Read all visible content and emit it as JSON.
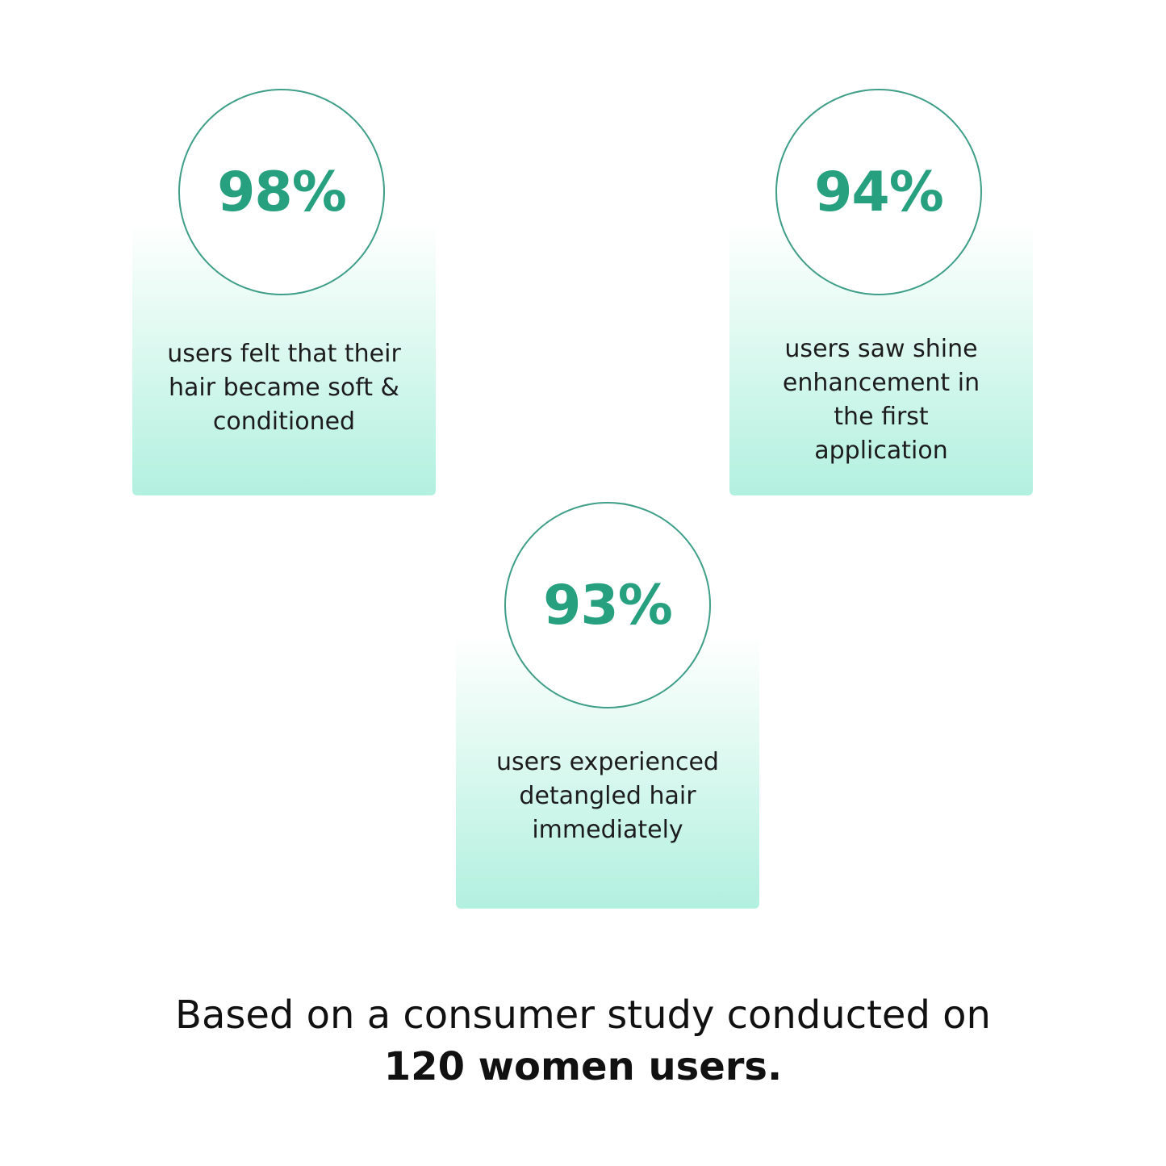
{
  "colors": {
    "accent": "#26a07f",
    "circle_border": "#3e9e88",
    "card_gradient_bottom": "#b2f0df"
  },
  "stats": [
    {
      "value": "98%",
      "lines": [
        "users felt that their",
        "hair became soft &",
        "conditioned"
      ]
    },
    {
      "value": "94%",
      "lines": [
        "users saw shine",
        "enhancement in",
        "the first",
        "application"
      ]
    },
    {
      "value": "93%",
      "lines": [
        "users experienced",
        "detangled hair",
        "immediately"
      ]
    }
  ],
  "footer": {
    "text": "Based on a consumer study conducted on",
    "bold": "120 women users."
  }
}
